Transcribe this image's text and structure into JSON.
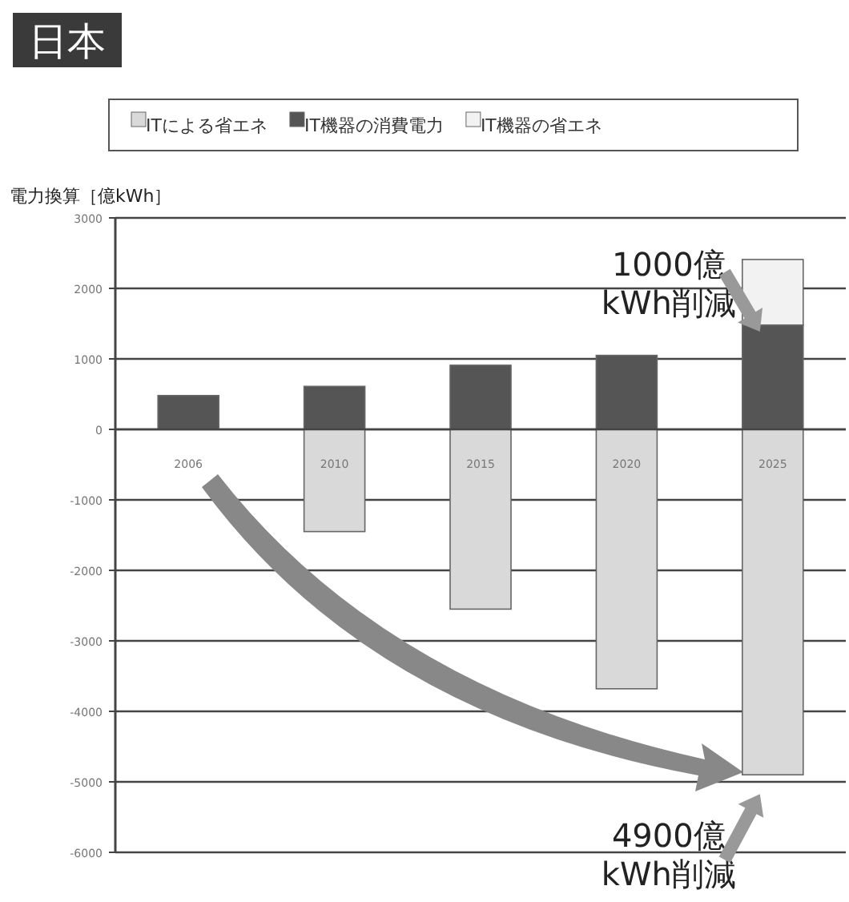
{
  "chart_data": {
    "type": "bar",
    "title": "日本",
    "ylabel": "電力換算［億kWh］",
    "categories": [
      "2006",
      "2010",
      "2015",
      "2020",
      "2025"
    ],
    "series": [
      {
        "name": "ITによる省エネ",
        "color": "#d9d9d9",
        "values": [
          null,
          -1450,
          -2550,
          -3680,
          -4900
        ]
      },
      {
        "name": "IT機器の消費電力",
        "color": "#555555",
        "values": [
          480,
          610,
          910,
          1050,
          1480
        ]
      },
      {
        "name": "IT機器の省エネ",
        "color": "#f2f2f2",
        "values": [
          null,
          null,
          null,
          null,
          930
        ]
      }
    ],
    "stacked": true,
    "ylim": [
      -6000,
      3000
    ],
    "yticks": [
      3000,
      2000,
      1000,
      0,
      -1000,
      -2000,
      -3000,
      -4000,
      -5000,
      -6000
    ],
    "grid": "y",
    "legend": "top",
    "annotations": [
      {
        "text": "1000億\nkWh削減",
        "x": "2025",
        "y": 2410
      },
      {
        "text": "4900億\nkWh削減",
        "x": "2025",
        "y": -4900
      }
    ]
  }
}
